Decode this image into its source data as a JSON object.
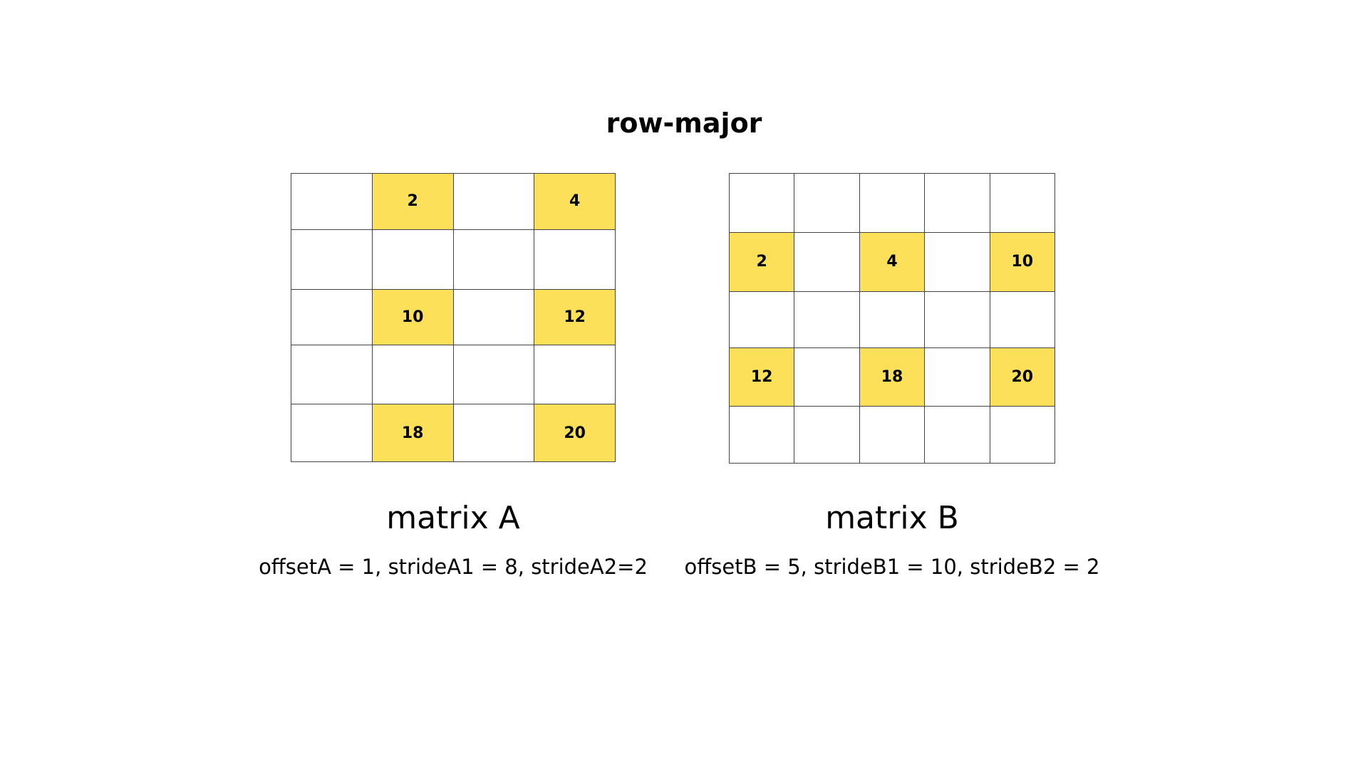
{
  "title": "row-major",
  "highlight_color": "#fde05a",
  "cell_color": "#ffffff",
  "matrices": [
    {
      "label": "matrix A",
      "params": "offsetA = 1, strideA1 = 8, strideA2=2",
      "rows": 5,
      "cols": 4,
      "cells": [
        [
          "",
          "2",
          "",
          "4"
        ],
        [
          "",
          "",
          "",
          ""
        ],
        [
          "",
          "10",
          "",
          "12"
        ],
        [
          "",
          "",
          "",
          ""
        ],
        [
          "",
          "18",
          "",
          "20"
        ]
      ],
      "highlighted": [
        [
          false,
          true,
          false,
          true
        ],
        [
          false,
          false,
          false,
          false
        ],
        [
          false,
          true,
          false,
          true
        ],
        [
          false,
          false,
          false,
          false
        ],
        [
          false,
          true,
          false,
          true
        ]
      ]
    },
    {
      "label": "matrix B",
      "params": "offsetB = 5, strideB1 = 10, strideB2 = 2",
      "rows": 5,
      "cols": 5,
      "cells": [
        [
          "",
          "",
          "",
          "",
          ""
        ],
        [
          "2",
          "",
          "4",
          "",
          "10"
        ],
        [
          "",
          "",
          "",
          "",
          ""
        ],
        [
          "12",
          "",
          "18",
          "",
          "20"
        ],
        [
          "",
          "",
          "",
          "",
          ""
        ]
      ],
      "highlighted": [
        [
          false,
          false,
          false,
          false,
          false
        ],
        [
          true,
          false,
          true,
          false,
          true
        ],
        [
          false,
          false,
          false,
          false,
          false
        ],
        [
          true,
          false,
          true,
          false,
          true
        ],
        [
          false,
          false,
          false,
          false,
          false
        ]
      ]
    }
  ]
}
